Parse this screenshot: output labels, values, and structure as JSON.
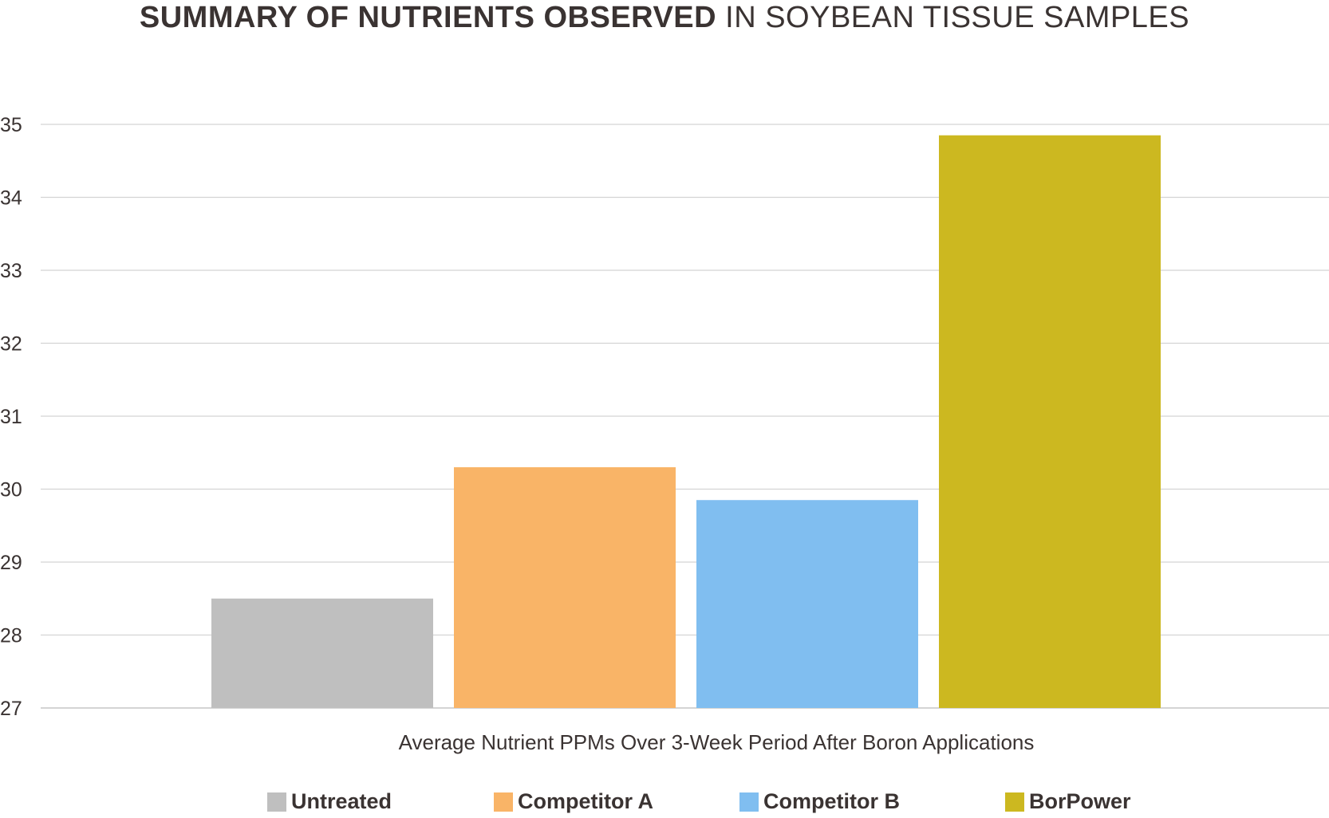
{
  "chart_data": {
    "type": "bar",
    "title_bold": "SUMMARY OF NUTRIENTS OBSERVED",
    "title_light": "IN SOYBEAN TISSUE SAMPLES",
    "xlabel": "Average Nutrient PPMs Over 3-Week Period After Boron Applications",
    "ylabel": "",
    "ylim": [
      27,
      35
    ],
    "yticks": [
      27,
      28,
      29,
      30,
      31,
      32,
      33,
      34,
      35
    ],
    "grid": true,
    "legend_position": "bottom",
    "categories": [
      "Untreated",
      "Competitor A",
      "Competitor B",
      "BorPower"
    ],
    "values": [
      28.5,
      30.3,
      29.85,
      34.85
    ],
    "colors": [
      "#bfbfbf",
      "#f9b467",
      "#80bef0",
      "#ccb820"
    ]
  }
}
